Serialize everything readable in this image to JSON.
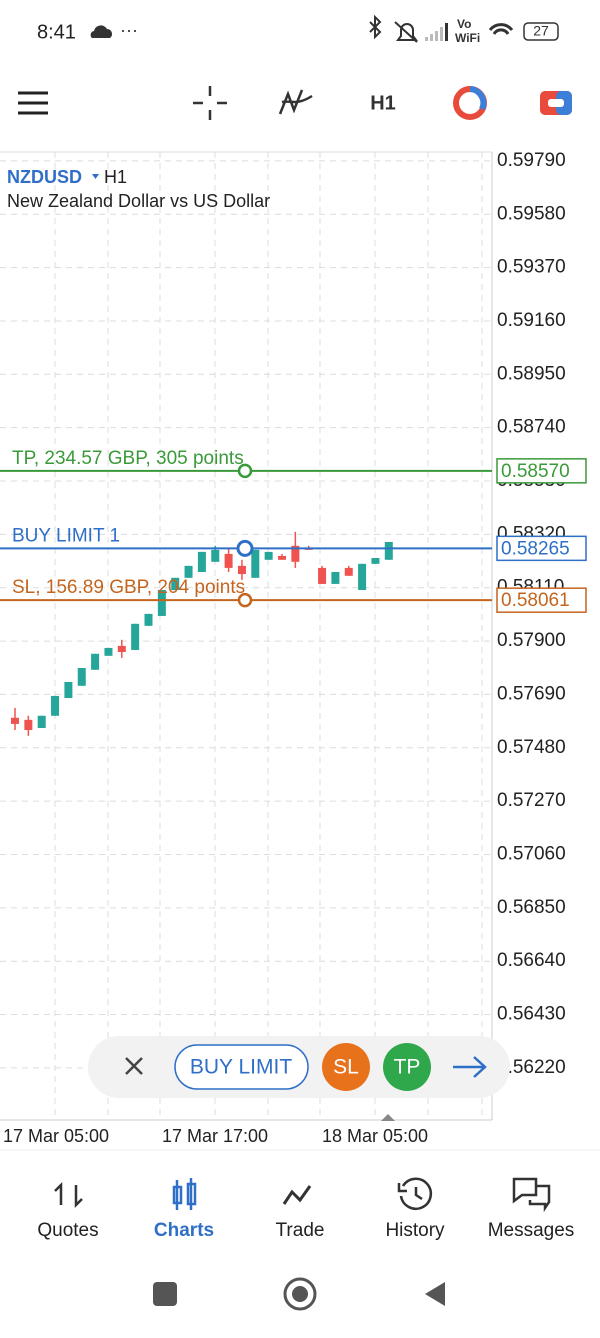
{
  "status_bar": {
    "time": "8:41",
    "volte": "Vo",
    "wifi": "WiFi",
    "battery": "27"
  },
  "toolbar": {
    "timeframe": "H1"
  },
  "chart": {
    "symbol": "NZDUSD",
    "timeframe": "H1",
    "description": "New Zealand Dollar vs US Dollar",
    "ylim": [
      0.56015,
      0.59825
    ],
    "yticks": [
      {
        "value": 0.5979,
        "label": "0.59790"
      },
      {
        "value": 0.5958,
        "label": "0.59580"
      },
      {
        "value": 0.5937,
        "label": "0.59370"
      },
      {
        "value": 0.5916,
        "label": "0.59160"
      },
      {
        "value": 0.5895,
        "label": "0.58950"
      },
      {
        "value": 0.5874,
        "label": "0.58740"
      },
      {
        "value": 0.5853,
        "label": "0.58530"
      },
      {
        "value": 0.5832,
        "label": "0.58320"
      },
      {
        "value": 0.5811,
        "label": "0.58110"
      },
      {
        "value": 0.579,
        "label": "0.57900"
      },
      {
        "value": 0.5769,
        "label": "0.57690"
      },
      {
        "value": 0.5748,
        "label": "0.57480"
      },
      {
        "value": 0.5727,
        "label": "0.57270"
      },
      {
        "value": 0.5706,
        "label": "0.57060"
      },
      {
        "value": 0.5685,
        "label": "0.56850"
      },
      {
        "value": 0.5664,
        "label": "0.56640"
      },
      {
        "value": 0.5643,
        "label": "0.56430"
      },
      {
        "value": 0.5622,
        "label": "0.56220"
      }
    ],
    "xticks": [
      "17 Mar 05:00",
      "17 Mar 17:00",
      "18 Mar 05:00"
    ],
    "up_color": "#26a69a",
    "down_color": "#ef5350",
    "candles": {
      "open": [
        0.57598,
        0.5759,
        0.57558,
        0.57606,
        0.57676,
        0.57724,
        0.57787,
        0.57842,
        0.57881,
        0.57865,
        0.5796,
        0.57999,
        0.58101,
        0.58149,
        0.58172,
        0.58212,
        0.58243,
        0.58196,
        0.58149,
        0.5822,
        0.58235,
        0.58275,
        0.58267,
        0.58188,
        0.58125,
        0.58188,
        0.58101,
        0.58204,
        0.5822
      ],
      "high": [
        0.57637,
        0.57606,
        0.57606,
        0.57684,
        0.57739,
        0.57794,
        0.5785,
        0.57873,
        0.57905,
        0.57968,
        0.58007,
        0.58101,
        0.58149,
        0.58196,
        0.58251,
        0.58275,
        0.58267,
        0.5822,
        0.58259,
        0.58251,
        0.58243,
        0.5833,
        0.58275,
        0.58196,
        0.58172,
        0.58196,
        0.58204,
        0.58227,
        0.5829
      ],
      "low": [
        0.5755,
        0.57527,
        0.57558,
        0.57606,
        0.57676,
        0.57724,
        0.57787,
        0.57842,
        0.57834,
        0.57865,
        0.5796,
        0.57999,
        0.58101,
        0.58149,
        0.58172,
        0.58212,
        0.58172,
        0.58141,
        0.58149,
        0.5822,
        0.5822,
        0.58188,
        0.58259,
        0.58125,
        0.58125,
        0.58157,
        0.58101,
        0.58204,
        0.5822
      ],
      "close": [
        0.57574,
        0.5755,
        0.57606,
        0.57684,
        0.57739,
        0.57794,
        0.5785,
        0.57873,
        0.57857,
        0.57968,
        0.58007,
        0.58101,
        0.58149,
        0.58196,
        0.58251,
        0.58259,
        0.58188,
        0.58164,
        0.58259,
        0.58251,
        0.5822,
        0.58212,
        0.58259,
        0.58125,
        0.58172,
        0.58157,
        0.58204,
        0.58227,
        0.5829
      ]
    },
    "levels": [
      {
        "label": "TP, 234.57 GBP, 305 points",
        "price": {
          "value": 0.5857,
          "label": "0.58570"
        },
        "color": "#3a9a3a"
      },
      {
        "label": "BUY LIMIT 1",
        "price": {
          "value": 0.58265,
          "label": "0.58265"
        },
        "color": "#2f6fc8"
      },
      {
        "label": "SL, 156.89 GBP, 204 points",
        "price": {
          "value": 0.58061,
          "label": "0.58061"
        },
        "color": "#c4651f"
      }
    ]
  },
  "order_bar": {
    "buttons": [
      "BUY LIMIT",
      "SL",
      "TP"
    ]
  },
  "nav": {
    "items": [
      "Quotes",
      "Charts",
      "Trade",
      "History",
      "Messages"
    ]
  }
}
